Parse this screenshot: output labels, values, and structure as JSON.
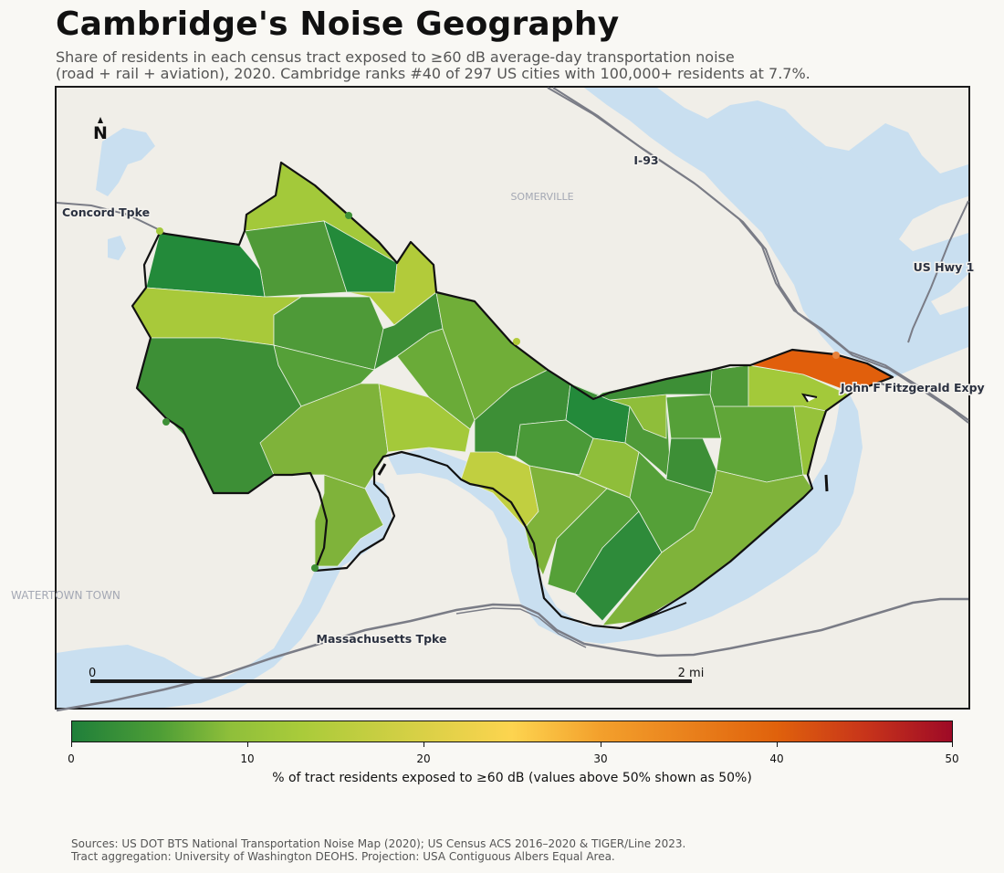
{
  "header": {
    "title": "Cambridge's Noise Geography",
    "subtitle_line1": "Share of residents in each census tract exposed to ≥60 dB average-day transportation noise",
    "subtitle_line2": "(road + rail + aviation), 2020. Cambridge ranks #40 of 297 US cities with 100,000+ residents at 7.7%."
  },
  "map": {
    "north_label": "N",
    "place_labels": {
      "somerville": "SOMERVILLE",
      "watertown": "WATERTOWN TOWN"
    },
    "road_labels": {
      "i93": "I-93",
      "concord": "Concord Tpke",
      "us1": "US Hwy 1",
      "fitzgerald": "John F Fitzgerald Expy",
      "mass_tpke": "Massachusetts Tpke"
    },
    "scale_bar": {
      "start": "0",
      "end": "2 mi"
    },
    "colors": {
      "land": "#f0eee8",
      "water": "#c9dff0",
      "road": "#7a7c86",
      "boundary": "#111111"
    }
  },
  "colorbar": {
    "ticks": [
      "0",
      "10",
      "20",
      "30",
      "40",
      "50"
    ],
    "label": "% of tract residents exposed to ≥60 dB (values above 50% shown as 50%)",
    "range": [
      0,
      50
    ],
    "stops": [
      "#1f7f3a",
      "#a9cb3a",
      "#fdd44f",
      "#e0620c",
      "#9e0a26"
    ]
  },
  "sources": {
    "line1": "Sources: US DOT BTS National Transportation Noise Map (2020); US Census ACS 2016–2020 & TIGER/Line 2023.",
    "line2": "Tract aggregation: University of Washington DEOHS. Projection: USA Contiguous Albers Equal Area."
  }
}
